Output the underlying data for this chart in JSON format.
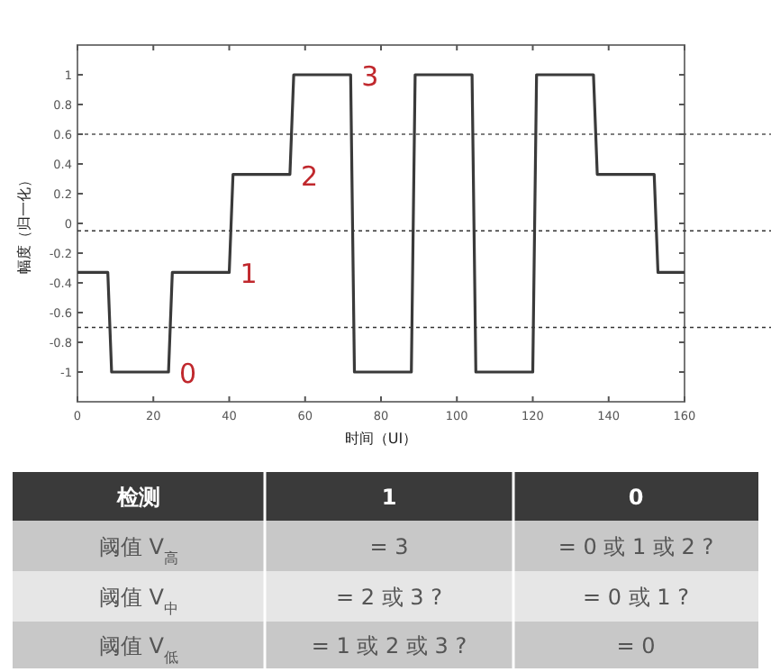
{
  "chart_data": [
    {
      "type": "line",
      "xlabel": "时间（UI）",
      "ylabel": "幅度（归一化）",
      "xlim": [
        0,
        160
      ],
      "ylim": [
        -1.2,
        1.2
      ],
      "xticks": [
        0,
        20,
        40,
        60,
        80,
        100,
        120,
        140,
        160
      ],
      "yticks": [
        -1,
        -0.8,
        -0.6,
        -0.4,
        -0.2,
        0,
        0.2,
        0.4,
        0.6,
        0.8,
        1
      ],
      "grid": false,
      "marker": "none",
      "line_style": "solid",
      "series": [
        {
          "color": "#3a3a3a",
          "x": [
            0,
            8,
            9,
            24,
            25,
            40,
            41,
            56,
            57,
            72,
            73,
            88,
            89,
            104,
            105,
            120,
            121,
            136,
            137,
            152,
            153,
            160
          ],
          "values": [
            -0.33,
            -0.33,
            -1,
            -1,
            -0.33,
            -0.33,
            0.33,
            0.33,
            1,
            1,
            -1,
            -1,
            1,
            1,
            -1,
            -1,
            1,
            1,
            0.33,
            0.33,
            -0.33,
            -0.33
          ]
        }
      ],
      "ref_lines": [
        {
          "axis": "y",
          "value": 0.6,
          "line_style": "dotted",
          "color": "#555555"
        },
        {
          "axis": "y",
          "value": -0.05,
          "line_style": "dotted",
          "color": "#333333"
        },
        {
          "axis": "y",
          "value": -0.7,
          "line_style": "dotted",
          "color": "#333333"
        }
      ],
      "annotations": [
        {
          "text": "0",
          "x": 24,
          "y": -1
        },
        {
          "text": "1",
          "x": 40,
          "y": -0.33
        },
        {
          "text": "2",
          "x": 56,
          "y": 0.33
        },
        {
          "text": "3",
          "x": 72,
          "y": 1
        }
      ]
    },
    {
      "type": "other",
      "annotations": [
        "检测",
        "1",
        "0",
        "阈值 V$_{高}$",
        "= 3",
        "= 0 或 1 或 2 ?",
        "阈值 V$_{中}$",
        "= 2 或 3 ?",
        "= 0 或 1 ?",
        "阈值 V$_{低}$",
        "= 1 或 2 或 3 ?",
        "= 0"
      ]
    }
  ]
}
